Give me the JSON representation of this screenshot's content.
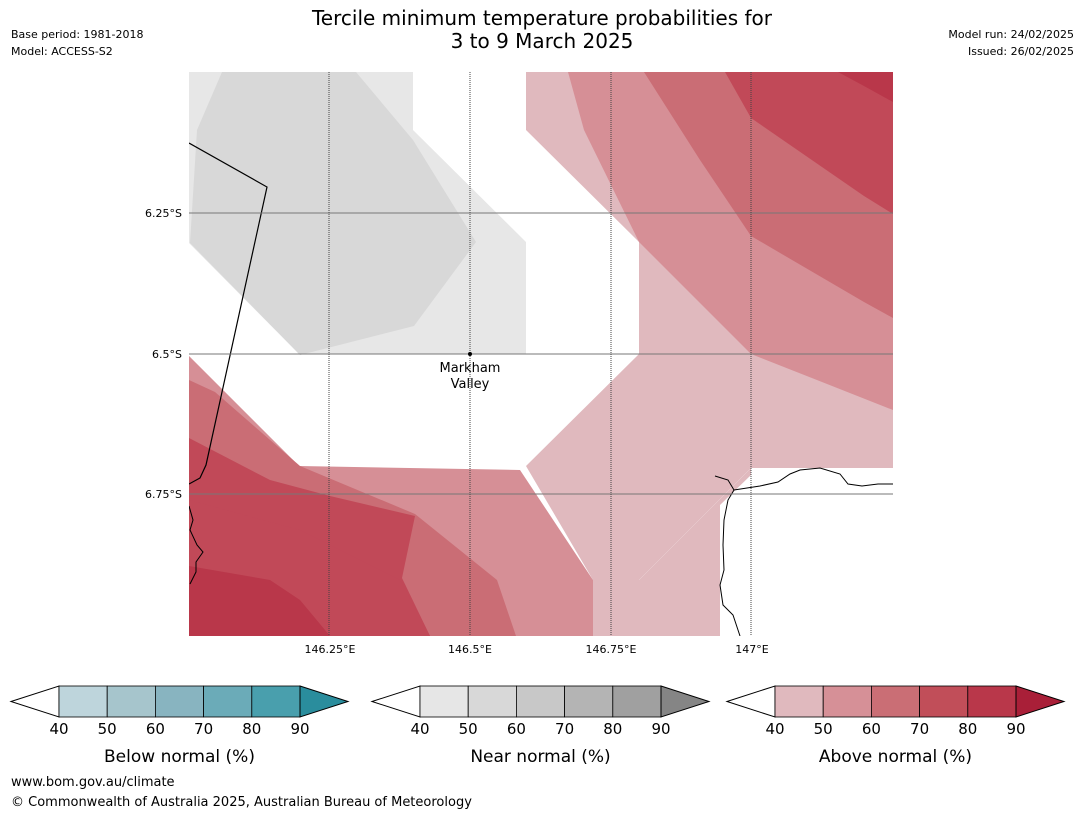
{
  "header": {
    "title_line1": "Tercile minimum temperature probabilities for",
    "title_line2": "3 to 9 March 2025",
    "base_period": "Base period: 1981-2018",
    "model": "Model: ACCESS-S2",
    "model_run": "Model run: 24/02/2025",
    "issued": "Issued: 26/02/2025"
  },
  "map": {
    "lat_labels": [
      "6.25°S",
      "6.5°S",
      "6.75°S"
    ],
    "lon_labels": [
      "146.25°E",
      "146.5°E",
      "146.75°E",
      "147°E"
    ],
    "place_name_line1": "Markham",
    "place_name_line2": "Valley",
    "place_marker_icon": "location-dot-icon"
  },
  "legends": [
    {
      "id": "below",
      "title": "Below normal (%)",
      "ticks": [
        "40",
        "50",
        "60",
        "70",
        "80",
        "90"
      ],
      "colors": [
        "#bed5dc",
        "#a6c5cc",
        "#88b4c0",
        "#6babb8",
        "#499fad",
        "#2a8d9d"
      ]
    },
    {
      "id": "near",
      "title": "Near normal (%)",
      "ticks": [
        "40",
        "50",
        "60",
        "70",
        "80",
        "90"
      ],
      "colors": [
        "#e6e6e6",
        "#d8d8d8",
        "#c8c8c8",
        "#b4b4b4",
        "#a0a0a0",
        "#858585"
      ]
    },
    {
      "id": "above",
      "title": "Above normal (%)",
      "ticks": [
        "40",
        "50",
        "60",
        "70",
        "80",
        "90"
      ],
      "colors": [
        "#e0b9be",
        "#d69097",
        "#ca6e75",
        "#c14e59",
        "#b9374a",
        "#a91f38"
      ]
    }
  ],
  "footer": {
    "url": "www.bom.gov.au/climate",
    "copyright": "© Commonwealth of Australia 2025, Australian Bureau of Meteorology"
  }
}
